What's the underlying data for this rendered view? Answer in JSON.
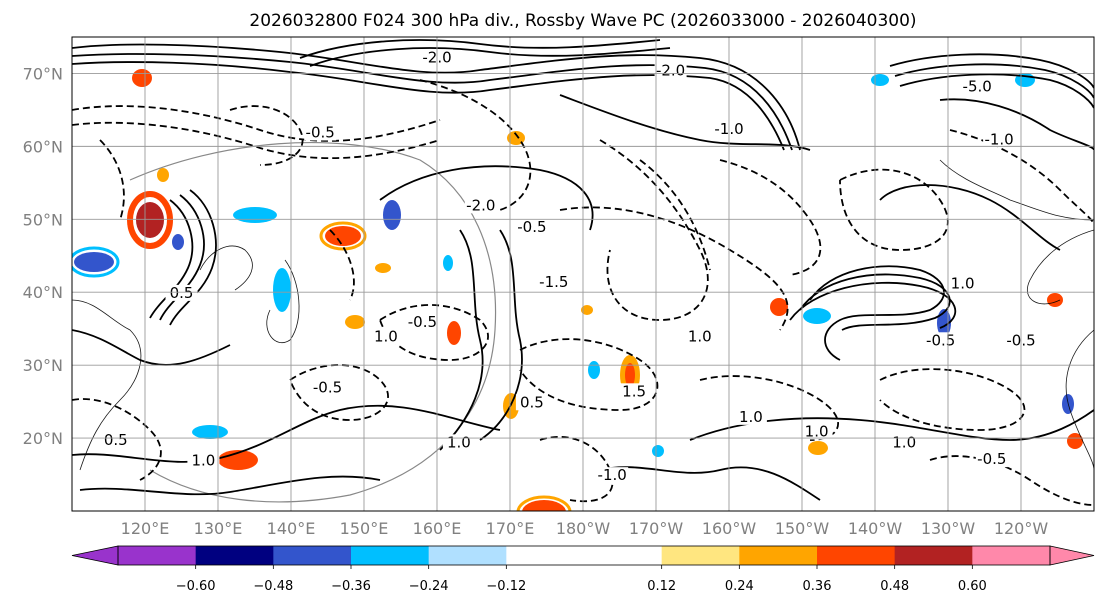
{
  "chart_data": {
    "type": "contour-map",
    "title": "2026032800 F024 300 hPa div., Rossby Wave PC (2026033000 - 2026040300)",
    "lon_range": [
      110,
      250
    ],
    "lat_range": [
      10,
      75
    ],
    "lat_ticks": [
      {
        "value": 20,
        "label": "20°N"
      },
      {
        "value": 30,
        "label": "30°N"
      },
      {
        "value": 40,
        "label": "40°N"
      },
      {
        "value": 50,
        "label": "50°N"
      },
      {
        "value": 60,
        "label": "60°N"
      },
      {
        "value": 70,
        "label": "70°N"
      }
    ],
    "lon_ticks": [
      {
        "value": 120,
        "label": "120°E"
      },
      {
        "value": 130,
        "label": "130°E"
      },
      {
        "value": 140,
        "label": "140°E"
      },
      {
        "value": 150,
        "label": "150°E"
      },
      {
        "value": 160,
        "label": "160°E"
      },
      {
        "value": 170,
        "label": "170°E"
      },
      {
        "value": 180,
        "label": "180°W"
      },
      {
        "value": 190,
        "label": "170°W"
      },
      {
        "value": 200,
        "label": "160°W"
      },
      {
        "value": 210,
        "label": "150°W"
      },
      {
        "value": 220,
        "label": "140°W"
      },
      {
        "value": 230,
        "label": "130°W"
      },
      {
        "value": 240,
        "label": "120°W"
      }
    ],
    "grid": true,
    "colorbar": {
      "orientation": "horizontal",
      "extend": "both",
      "levels": [
        -0.72,
        -0.6,
        -0.48,
        -0.36,
        -0.24,
        -0.12,
        0.12,
        0.24,
        0.36,
        0.48,
        0.6,
        0.72
      ],
      "colors": [
        "#9933cc",
        "#000080",
        "#3355cc",
        "#00bfff",
        "#b0e0ff",
        "#ffffff",
        "#ffe680",
        "#ffa500",
        "#ff4500",
        "#b22222",
        "#ff88aa"
      ],
      "tick_labels": [
        {
          "value": -0.6,
          "label": "−0.60"
        },
        {
          "value": -0.48,
          "label": "−0.48"
        },
        {
          "value": -0.36,
          "label": "−0.36"
        },
        {
          "value": -0.24,
          "label": "−0.24"
        },
        {
          "value": -0.12,
          "label": "−0.12"
        },
        {
          "value": 0.12,
          "label": "0.12"
        },
        {
          "value": 0.24,
          "label": "0.24"
        },
        {
          "value": 0.36,
          "label": "0.36"
        },
        {
          "value": 0.48,
          "label": "0.48"
        },
        {
          "value": 0.6,
          "label": "0.60"
        }
      ]
    },
    "contour_labels": [
      {
        "lon": 116,
        "lat": 19.3,
        "text": "0.5"
      },
      {
        "lon": 128,
        "lat": 16.5,
        "text": "1.0"
      },
      {
        "lon": 163,
        "lat": 19.0,
        "text": "1.0"
      },
      {
        "lon": 196,
        "lat": 33.5,
        "text": "1.0"
      },
      {
        "lon": 203,
        "lat": 22.5,
        "text": "1.0"
      },
      {
        "lon": 212,
        "lat": 20.5,
        "text": "1.0"
      },
      {
        "lon": 224,
        "lat": 19.0,
        "text": "1.0"
      },
      {
        "lon": 232,
        "lat": 40.8,
        "text": "1.0"
      },
      {
        "lon": 229,
        "lat": 33.0,
        "text": "-0.5"
      },
      {
        "lon": 240,
        "lat": 33.0,
        "text": "-0.5"
      },
      {
        "lon": 236,
        "lat": 16.7,
        "text": "-0.5"
      },
      {
        "lon": 158,
        "lat": 35.5,
        "text": "-0.5"
      },
      {
        "lon": 176,
        "lat": 41.0,
        "text": "-1.5"
      },
      {
        "lon": 144,
        "lat": 61.5,
        "text": "-0.5"
      },
      {
        "lon": 173,
        "lat": 48.5,
        "text": "-0.5"
      },
      {
        "lon": 160,
        "lat": 71.8,
        "text": "-2.0"
      },
      {
        "lon": 192,
        "lat": 70.0,
        "text": "-2.0"
      },
      {
        "lon": 234,
        "lat": 67.8,
        "text": "-5.0"
      },
      {
        "lon": 166,
        "lat": 51.5,
        "text": "-2.0"
      },
      {
        "lon": 200,
        "lat": 62.0,
        "text": "-1.0"
      },
      {
        "lon": 237,
        "lat": 60.5,
        "text": "-1.0"
      },
      {
        "lon": 145,
        "lat": 26.5,
        "text": "-0.5"
      },
      {
        "lon": 173,
        "lat": 24.5,
        "text": "0.5"
      },
      {
        "lon": 184,
        "lat": 14.5,
        "text": "-1.0"
      },
      {
        "lon": 187,
        "lat": 26.0,
        "text": "1.5"
      },
      {
        "lon": 153,
        "lat": 33.5,
        "text": "1.0"
      },
      {
        "lon": 125,
        "lat": 39.5,
        "text": "0.5"
      }
    ]
  }
}
